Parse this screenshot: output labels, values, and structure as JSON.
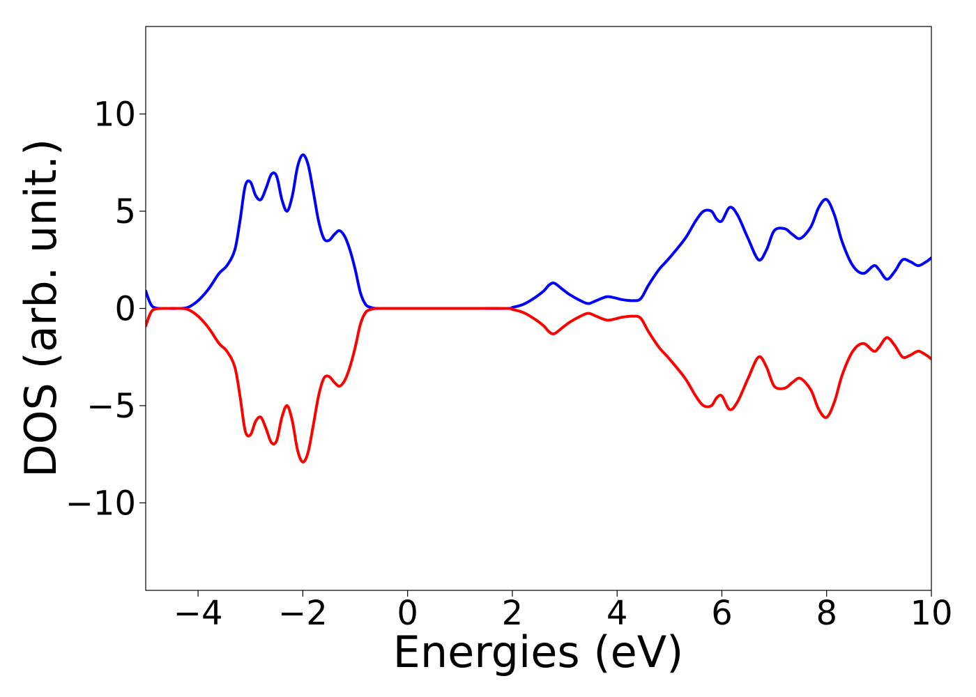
{
  "chart_data": {
    "type": "line",
    "title": "",
    "xlabel": "Energies (eV)",
    "ylabel": "DOS (arb. unit.)",
    "xlim": [
      -5,
      10
    ],
    "ylim": [
      -14.5,
      14.5
    ],
    "x_ticks": [
      -4,
      -2,
      0,
      2,
      4,
      6,
      8,
      10
    ],
    "x_tick_labels": [
      "−4",
      "−2",
      "0",
      "2",
      "4",
      "6",
      "8",
      "10"
    ],
    "y_ticks": [
      -10,
      -5,
      0,
      5,
      10
    ],
    "y_tick_labels": [
      "−10",
      "−5",
      "0",
      "5",
      "10"
    ],
    "grid": false,
    "legend": "none",
    "series": [
      {
        "color": "#0000ff",
        "x": [
          -5,
          -4.9,
          -4.8,
          -4.6,
          -4.4,
          -4.2,
          -4.0,
          -3.8,
          -3.6,
          -3.45,
          -3.3,
          -3.2,
          -3.1,
          -3.0,
          -2.9,
          -2.8,
          -2.7,
          -2.6,
          -2.5,
          -2.4,
          -2.3,
          -2.2,
          -2.1,
          -2.0,
          -1.9,
          -1.8,
          -1.7,
          -1.6,
          -1.5,
          -1.4,
          -1.3,
          -1.2,
          -1.1,
          -1.0,
          -0.9,
          -0.8,
          -0.7,
          -0.6,
          -0.5,
          0,
          1,
          1.9,
          2.0,
          2.2,
          2.4,
          2.6,
          2.7,
          2.8,
          2.95,
          3.1,
          3.3,
          3.45,
          3.6,
          3.8,
          3.95,
          4.1,
          4.3,
          4.45,
          4.6,
          4.8,
          5.0,
          5.3,
          5.5,
          5.65,
          5.8,
          5.9,
          6.0,
          6.15,
          6.3,
          6.5,
          6.7,
          6.85,
          7.0,
          7.2,
          7.35,
          7.5,
          7.7,
          7.85,
          8.0,
          8.15,
          8.3,
          8.5,
          8.7,
          8.9,
          9.0,
          9.15,
          9.3,
          9.45,
          9.6,
          9.75,
          9.9,
          10.0
        ],
        "y": [
          0.9,
          0.2,
          0.02,
          0,
          0,
          0.05,
          0.4,
          1.0,
          1.8,
          2.2,
          3.0,
          4.5,
          6.3,
          6.5,
          5.8,
          5.6,
          6.2,
          6.9,
          6.8,
          5.6,
          5.0,
          5.8,
          7.3,
          7.9,
          7.4,
          6.0,
          4.5,
          3.6,
          3.5,
          3.8,
          4.0,
          3.7,
          3.0,
          2.0,
          0.8,
          0.2,
          0.05,
          0,
          0,
          0,
          0,
          0,
          0.05,
          0.2,
          0.5,
          0.9,
          1.2,
          1.3,
          1.0,
          0.7,
          0.4,
          0.25,
          0.4,
          0.6,
          0.55,
          0.45,
          0.4,
          0.5,
          1.2,
          2.0,
          2.6,
          3.6,
          4.5,
          5.0,
          5.0,
          4.6,
          4.5,
          5.2,
          4.8,
          3.6,
          2.5,
          3.0,
          4.0,
          4.1,
          3.8,
          3.6,
          4.2,
          5.2,
          5.6,
          4.8,
          3.4,
          2.2,
          1.8,
          2.2,
          2.0,
          1.5,
          1.9,
          2.5,
          2.4,
          2.2,
          2.4,
          2.6
        ]
      },
      {
        "color": "#ff0000",
        "x": [
          -5,
          -4.9,
          -4.8,
          -4.6,
          -4.4,
          -4.2,
          -4.0,
          -3.8,
          -3.6,
          -3.45,
          -3.3,
          -3.2,
          -3.1,
          -3.0,
          -2.9,
          -2.8,
          -2.7,
          -2.6,
          -2.5,
          -2.4,
          -2.3,
          -2.2,
          -2.1,
          -2.0,
          -1.9,
          -1.8,
          -1.7,
          -1.6,
          -1.5,
          -1.4,
          -1.3,
          -1.2,
          -1.1,
          -1.0,
          -0.9,
          -0.8,
          -0.7,
          -0.6,
          -0.5,
          0,
          1,
          1.9,
          2.0,
          2.2,
          2.4,
          2.6,
          2.7,
          2.8,
          2.95,
          3.1,
          3.3,
          3.45,
          3.6,
          3.8,
          3.95,
          4.1,
          4.3,
          4.45,
          4.6,
          4.8,
          5.0,
          5.3,
          5.5,
          5.65,
          5.8,
          5.9,
          6.0,
          6.15,
          6.3,
          6.5,
          6.7,
          6.85,
          7.0,
          7.2,
          7.35,
          7.5,
          7.7,
          7.85,
          8.0,
          8.15,
          8.3,
          8.5,
          8.7,
          8.9,
          9.0,
          9.15,
          9.3,
          9.45,
          9.6,
          9.75,
          9.9,
          10.0
        ],
        "y": [
          -0.9,
          -0.2,
          -0.02,
          0,
          0,
          -0.05,
          -0.4,
          -1.0,
          -1.8,
          -2.2,
          -3.0,
          -4.5,
          -6.3,
          -6.5,
          -5.8,
          -5.6,
          -6.2,
          -6.9,
          -6.8,
          -5.6,
          -5.0,
          -5.8,
          -7.3,
          -7.9,
          -7.4,
          -6.0,
          -4.5,
          -3.6,
          -3.5,
          -3.8,
          -4.0,
          -3.7,
          -3.0,
          -2.0,
          -0.8,
          -0.2,
          -0.05,
          0,
          0,
          0,
          0,
          0,
          -0.05,
          -0.2,
          -0.5,
          -0.9,
          -1.2,
          -1.3,
          -1.0,
          -0.7,
          -0.4,
          -0.25,
          -0.4,
          -0.6,
          -0.55,
          -0.45,
          -0.4,
          -0.5,
          -1.2,
          -2.0,
          -2.6,
          -3.6,
          -4.5,
          -5.0,
          -5.0,
          -4.6,
          -4.5,
          -5.2,
          -4.8,
          -3.6,
          -2.5,
          -3.0,
          -4.0,
          -4.1,
          -3.8,
          -3.6,
          -4.2,
          -5.2,
          -5.6,
          -4.8,
          -3.4,
          -2.2,
          -1.8,
          -2.2,
          -2.0,
          -1.5,
          -1.9,
          -2.5,
          -2.4,
          -2.2,
          -2.4,
          -2.6
        ]
      }
    ]
  }
}
